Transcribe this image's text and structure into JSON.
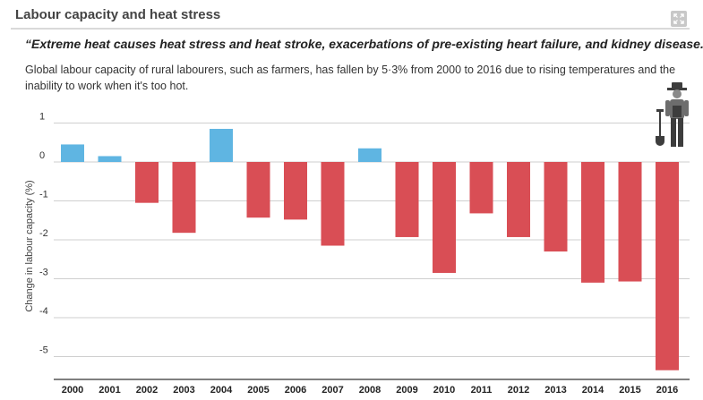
{
  "header": {
    "title": "Labour capacity and heat stress",
    "expand_icon": "expand-icon"
  },
  "quote": "“Extreme heat causes heat stress and heat stroke, exacerbations of pre-existing heart failure, and kidney disease.”",
  "description": "Global labour capacity of rural labourers, such as farmers, has fallen by 5·3% from 2000 to 2016 due to rising temperatures and the inability to work when it's too hot.",
  "illustration": {
    "icon": "farmer-with-shovel-icon"
  },
  "chart_data": {
    "type": "bar",
    "categories": [
      "2000",
      "2001",
      "2002",
      "2003",
      "2004",
      "2005",
      "2006",
      "2007",
      "2008",
      "2009",
      "2010",
      "2011",
      "2012",
      "2013",
      "2014",
      "2015",
      "2016"
    ],
    "values": [
      0.45,
      0.15,
      -1.05,
      -1.82,
      0.85,
      -1.43,
      -1.48,
      -2.15,
      0.35,
      -1.93,
      -2.85,
      -1.32,
      -1.93,
      -2.3,
      -3.1,
      -3.07,
      -5.35
    ],
    "ylabel": "Change in labour capacity (%)",
    "ylim": [
      -5.5,
      1.2
    ],
    "yticks": [
      {
        "value": 1,
        "label": "1"
      },
      {
        "value": 0,
        "label": "0"
      },
      {
        "value": -1,
        "label": "-1"
      },
      {
        "value": -2,
        "label": "-2"
      },
      {
        "value": -3,
        "label": "-3"
      },
      {
        "value": -4,
        "label": "-4"
      },
      {
        "value": -5,
        "label": "-5"
      }
    ],
    "grid": true,
    "colors": {
      "positive": "#5fb5e2",
      "negative": "#d94e55",
      "grid": "#cfcfcf"
    }
  }
}
